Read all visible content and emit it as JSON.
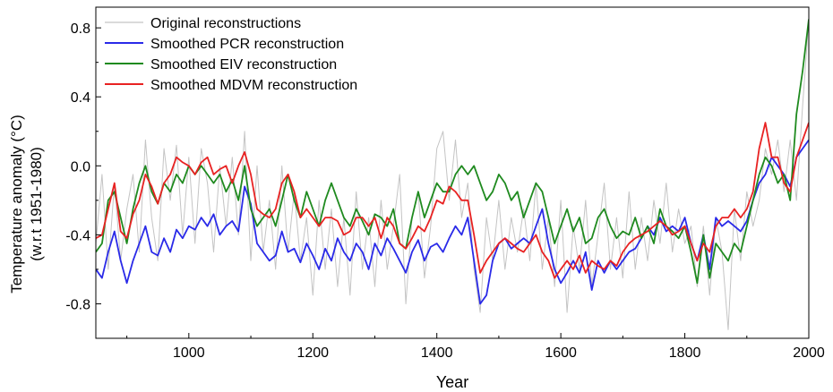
{
  "chart_data": {
    "type": "line",
    "xlabel": "Year",
    "ylabel_line1": "Temperature anomaly (°C)",
    "ylabel_line2": "(w.r.t 1951-1980)",
    "xlim": [
      850,
      2000
    ],
    "ylim": [
      -1.0,
      0.92
    ],
    "xticks": [
      1000,
      1200,
      1400,
      1600,
      1800,
      2000
    ],
    "yticks": [
      -0.8,
      -0.4,
      0.0,
      0.4,
      0.8
    ],
    "ytick_labels": [
      "-0.8",
      "-0.4",
      "0.0",
      "0.4",
      "0.8"
    ],
    "grid": false,
    "legend_position": "top-left",
    "series": [
      {
        "name": "Original reconstructions",
        "color": "#c4c4c4",
        "x": [
          850,
          860,
          870,
          880,
          890,
          900,
          910,
          920,
          930,
          940,
          950,
          960,
          970,
          980,
          990,
          1000,
          1010,
          1020,
          1030,
          1040,
          1050,
          1060,
          1070,
          1080,
          1090,
          1100,
          1110,
          1120,
          1130,
          1140,
          1150,
          1160,
          1170,
          1180,
          1190,
          1200,
          1210,
          1220,
          1230,
          1240,
          1250,
          1260,
          1270,
          1280,
          1290,
          1300,
          1310,
          1320,
          1330,
          1340,
          1350,
          1360,
          1370,
          1380,
          1390,
          1400,
          1410,
          1420,
          1430,
          1440,
          1450,
          1460,
          1470,
          1480,
          1490,
          1500,
          1510,
          1520,
          1530,
          1540,
          1550,
          1560,
          1570,
          1580,
          1590,
          1600,
          1610,
          1620,
          1630,
          1640,
          1650,
          1660,
          1670,
          1680,
          1690,
          1700,
          1710,
          1720,
          1730,
          1740,
          1750,
          1760,
          1770,
          1780,
          1790,
          1800,
          1810,
          1820,
          1830,
          1840,
          1850,
          1860,
          1870,
          1880,
          1890,
          1900,
          1910,
          1920,
          1930,
          1940,
          1950,
          1960,
          1970,
          1980,
          1990,
          2000
        ],
        "y": [
          -0.45,
          -0.05,
          -0.6,
          -0.1,
          -0.55,
          -0.25,
          -0.05,
          -0.5,
          0.15,
          -0.3,
          -0.55,
          0.1,
          -0.2,
          0.12,
          -0.4,
          0.05,
          -0.45,
          0.1,
          -0.1,
          -0.5,
          0.0,
          -0.35,
          0.05,
          -0.4,
          0.2,
          -0.55,
          0.0,
          -0.5,
          -0.2,
          -0.6,
          0.0,
          -0.5,
          -0.15,
          -0.55,
          -0.3,
          -0.75,
          -0.2,
          -0.6,
          -0.25,
          -0.7,
          -0.3,
          -0.75,
          -0.15,
          -0.6,
          -0.3,
          -0.7,
          -0.2,
          -0.6,
          -0.35,
          -0.05,
          -0.8,
          -0.3,
          -0.15,
          -0.65,
          -0.35,
          0.1,
          0.2,
          -0.2,
          0.15,
          -0.3,
          -0.1,
          -0.6,
          -0.85,
          -0.3,
          -0.55,
          -0.2,
          -0.6,
          -0.3,
          -0.5,
          -0.25,
          -0.55,
          -0.1,
          -0.6,
          -0.3,
          -0.7,
          -0.2,
          -0.85,
          -0.35,
          -0.6,
          -0.2,
          -0.7,
          -0.4,
          -0.1,
          -0.6,
          -0.3,
          -0.65,
          -0.15,
          -0.6,
          -0.3,
          -0.55,
          -0.2,
          -0.45,
          -0.1,
          -0.5,
          -0.25,
          -0.45,
          -0.35,
          -0.7,
          -0.35,
          -0.75,
          -0.3,
          -0.5,
          -0.95,
          -0.25,
          -0.55,
          -0.15,
          -0.35,
          -0.2,
          0.1,
          -0.05,
          0.15,
          -0.15,
          0.15,
          -0.2,
          0.35,
          0.85
        ]
      },
      {
        "name": "Smoothed PCR reconstruction",
        "color": "#2a2ae8",
        "x": [
          850,
          860,
          870,
          880,
          890,
          900,
          910,
          920,
          930,
          940,
          950,
          960,
          970,
          980,
          990,
          1000,
          1010,
          1020,
          1030,
          1040,
          1050,
          1060,
          1070,
          1080,
          1090,
          1100,
          1110,
          1120,
          1130,
          1140,
          1150,
          1160,
          1170,
          1180,
          1190,
          1200,
          1210,
          1220,
          1230,
          1240,
          1250,
          1260,
          1270,
          1280,
          1290,
          1300,
          1310,
          1320,
          1330,
          1340,
          1350,
          1360,
          1370,
          1380,
          1390,
          1400,
          1410,
          1420,
          1430,
          1440,
          1450,
          1460,
          1470,
          1480,
          1490,
          1500,
          1510,
          1520,
          1530,
          1540,
          1550,
          1560,
          1570,
          1580,
          1590,
          1600,
          1610,
          1620,
          1630,
          1640,
          1650,
          1660,
          1670,
          1680,
          1690,
          1700,
          1710,
          1720,
          1730,
          1740,
          1750,
          1760,
          1770,
          1780,
          1790,
          1800,
          1810,
          1820,
          1830,
          1840,
          1850,
          1860,
          1870,
          1880,
          1890,
          1900,
          1910,
          1920,
          1930,
          1940,
          1950,
          1960,
          1970,
          1980,
          1990,
          2000
        ],
        "y": [
          -0.6,
          -0.65,
          -0.5,
          -0.38,
          -0.55,
          -0.68,
          -0.55,
          -0.45,
          -0.35,
          -0.5,
          -0.52,
          -0.42,
          -0.5,
          -0.37,
          -0.42,
          -0.35,
          -0.37,
          -0.3,
          -0.35,
          -0.28,
          -0.4,
          -0.35,
          -0.32,
          -0.38,
          -0.12,
          -0.22,
          -0.45,
          -0.5,
          -0.55,
          -0.52,
          -0.38,
          -0.5,
          -0.48,
          -0.56,
          -0.45,
          -0.52,
          -0.6,
          -0.48,
          -0.55,
          -0.42,
          -0.5,
          -0.55,
          -0.45,
          -0.5,
          -0.6,
          -0.45,
          -0.52,
          -0.42,
          -0.48,
          -0.55,
          -0.62,
          -0.5,
          -0.43,
          -0.55,
          -0.47,
          -0.45,
          -0.5,
          -0.42,
          -0.35,
          -0.4,
          -0.3,
          -0.55,
          -0.8,
          -0.75,
          -0.55,
          -0.45,
          -0.42,
          -0.48,
          -0.45,
          -0.42,
          -0.45,
          -0.35,
          -0.25,
          -0.45,
          -0.6,
          -0.68,
          -0.62,
          -0.55,
          -0.62,
          -0.5,
          -0.72,
          -0.55,
          -0.62,
          -0.55,
          -0.6,
          -0.55,
          -0.5,
          -0.48,
          -0.42,
          -0.35,
          -0.4,
          -0.3,
          -0.38,
          -0.35,
          -0.38,
          -0.3,
          -0.45,
          -0.55,
          -0.4,
          -0.6,
          -0.3,
          -0.35,
          -0.32,
          -0.35,
          -0.38,
          -0.32,
          -0.2,
          -0.1,
          -0.05,
          0.05,
          0.0,
          -0.05,
          -0.12,
          0.05,
          0.1,
          0.15
        ]
      },
      {
        "name": "Smoothed EIV reconstruction",
        "color": "#1f8a1f",
        "x": [
          850,
          860,
          870,
          880,
          890,
          900,
          910,
          920,
          930,
          940,
          950,
          960,
          970,
          980,
          990,
          1000,
          1010,
          1020,
          1030,
          1040,
          1050,
          1060,
          1070,
          1080,
          1090,
          1100,
          1110,
          1120,
          1130,
          1140,
          1150,
          1160,
          1170,
          1180,
          1190,
          1200,
          1210,
          1220,
          1230,
          1240,
          1250,
          1260,
          1270,
          1280,
          1290,
          1300,
          1310,
          1320,
          1330,
          1340,
          1350,
          1360,
          1370,
          1380,
          1390,
          1400,
          1410,
          1420,
          1430,
          1440,
          1450,
          1460,
          1470,
          1480,
          1490,
          1500,
          1510,
          1520,
          1530,
          1540,
          1550,
          1560,
          1570,
          1580,
          1590,
          1600,
          1610,
          1620,
          1630,
          1640,
          1650,
          1660,
          1670,
          1680,
          1690,
          1700,
          1710,
          1720,
          1730,
          1740,
          1750,
          1760,
          1770,
          1780,
          1790,
          1800,
          1810,
          1820,
          1830,
          1840,
          1850,
          1860,
          1870,
          1880,
          1890,
          1900,
          1910,
          1920,
          1930,
          1940,
          1950,
          1960,
          1970,
          1980,
          1990,
          2000
        ],
        "y": [
          -0.5,
          -0.45,
          -0.2,
          -0.15,
          -0.3,
          -0.45,
          -0.25,
          -0.1,
          0.0,
          -0.15,
          -0.22,
          -0.1,
          -0.15,
          -0.05,
          -0.1,
          0.0,
          -0.05,
          0.0,
          -0.05,
          -0.1,
          -0.05,
          -0.15,
          -0.08,
          -0.2,
          0.0,
          -0.25,
          -0.35,
          -0.3,
          -0.25,
          -0.35,
          -0.2,
          -0.05,
          -0.2,
          -0.3,
          -0.15,
          -0.25,
          -0.35,
          -0.2,
          -0.1,
          -0.2,
          -0.3,
          -0.35,
          -0.25,
          -0.32,
          -0.4,
          -0.28,
          -0.3,
          -0.35,
          -0.25,
          -0.45,
          -0.48,
          -0.3,
          -0.15,
          -0.3,
          -0.2,
          -0.1,
          -0.15,
          -0.15,
          -0.05,
          0.0,
          -0.05,
          0.0,
          -0.1,
          -0.2,
          -0.15,
          -0.05,
          -0.1,
          -0.2,
          -0.15,
          -0.3,
          -0.2,
          -0.1,
          -0.15,
          -0.3,
          -0.45,
          -0.35,
          -0.25,
          -0.38,
          -0.3,
          -0.45,
          -0.42,
          -0.3,
          -0.25,
          -0.35,
          -0.42,
          -0.38,
          -0.4,
          -0.3,
          -0.42,
          -0.35,
          -0.45,
          -0.25,
          -0.35,
          -0.38,
          -0.42,
          -0.35,
          -0.5,
          -0.68,
          -0.4,
          -0.65,
          -0.45,
          -0.5,
          -0.55,
          -0.45,
          -0.5,
          -0.35,
          -0.2,
          -0.05,
          0.05,
          0.0,
          -0.1,
          -0.05,
          -0.2,
          0.3,
          0.55,
          0.85
        ]
      },
      {
        "name": "Smoothed MDVM reconstruction",
        "color": "#e82222",
        "x": [
          850,
          860,
          870,
          880,
          890,
          900,
          910,
          920,
          930,
          940,
          950,
          960,
          970,
          980,
          990,
          1000,
          1010,
          1020,
          1030,
          1040,
          1050,
          1060,
          1070,
          1080,
          1090,
          1100,
          1110,
          1120,
          1130,
          1140,
          1150,
          1160,
          1170,
          1180,
          1190,
          1200,
          1210,
          1220,
          1230,
          1240,
          1250,
          1260,
          1270,
          1280,
          1290,
          1300,
          1310,
          1320,
          1330,
          1340,
          1350,
          1360,
          1370,
          1380,
          1390,
          1400,
          1410,
          1420,
          1430,
          1440,
          1450,
          1460,
          1470,
          1480,
          1490,
          1500,
          1510,
          1520,
          1530,
          1540,
          1550,
          1560,
          1570,
          1580,
          1590,
          1600,
          1610,
          1620,
          1630,
          1640,
          1650,
          1660,
          1670,
          1680,
          1690,
          1700,
          1710,
          1720,
          1730,
          1740,
          1750,
          1760,
          1770,
          1780,
          1790,
          1800,
          1810,
          1820,
          1830,
          1840,
          1850,
          1860,
          1870,
          1880,
          1890,
          1900,
          1910,
          1920,
          1930,
          1940,
          1950,
          1960,
          1970,
          1980,
          1990,
          2000
        ],
        "y": [
          -0.42,
          -0.4,
          -0.25,
          -0.1,
          -0.38,
          -0.42,
          -0.28,
          -0.2,
          -0.05,
          -0.12,
          -0.22,
          -0.1,
          -0.05,
          0.05,
          0.02,
          0.0,
          -0.05,
          0.02,
          0.05,
          -0.05,
          -0.02,
          0.0,
          -0.1,
          0.0,
          0.08,
          -0.05,
          -0.25,
          -0.28,
          -0.3,
          -0.25,
          -0.1,
          -0.05,
          -0.15,
          -0.3,
          -0.25,
          -0.3,
          -0.35,
          -0.3,
          -0.3,
          -0.32,
          -0.4,
          -0.38,
          -0.3,
          -0.3,
          -0.35,
          -0.3,
          -0.42,
          -0.3,
          -0.35,
          -0.45,
          -0.48,
          -0.42,
          -0.35,
          -0.38,
          -0.3,
          -0.2,
          -0.22,
          -0.12,
          -0.15,
          -0.2,
          -0.2,
          -0.4,
          -0.62,
          -0.55,
          -0.5,
          -0.45,
          -0.42,
          -0.45,
          -0.48,
          -0.5,
          -0.45,
          -0.4,
          -0.5,
          -0.55,
          -0.65,
          -0.6,
          -0.55,
          -0.6,
          -0.52,
          -0.62,
          -0.55,
          -0.58,
          -0.6,
          -0.55,
          -0.58,
          -0.5,
          -0.45,
          -0.42,
          -0.4,
          -0.38,
          -0.35,
          -0.32,
          -0.35,
          -0.4,
          -0.38,
          -0.35,
          -0.45,
          -0.55,
          -0.45,
          -0.5,
          -0.35,
          -0.3,
          -0.3,
          -0.25,
          -0.3,
          -0.25,
          -0.15,
          0.1,
          0.25,
          0.05,
          0.05,
          -0.1,
          -0.15,
          0.05,
          0.15,
          0.25
        ]
      }
    ]
  }
}
